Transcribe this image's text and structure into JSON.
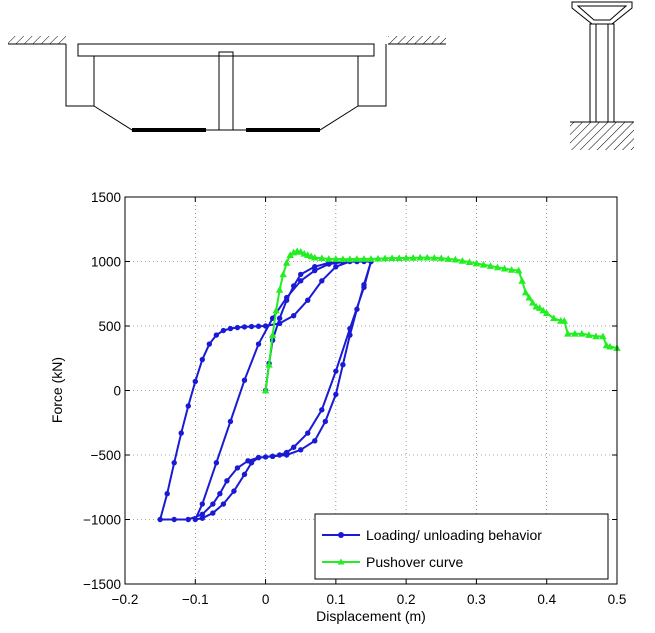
{
  "chart_data": {
    "type": "line",
    "xlabel": "Displacement (m)",
    "ylabel": "Force (kN)",
    "xlim": [
      -0.2,
      0.5
    ],
    "ylim": [
      -1500,
      1500
    ],
    "x_ticks": [
      -0.2,
      -0.1,
      0,
      0.1,
      0.2,
      0.3,
      0.4,
      0.5
    ],
    "x_tick_labels": [
      "−0.2",
      "−0.1",
      "0",
      "0.1",
      "0.2",
      "0.3",
      "0.4",
      "0.5"
    ],
    "y_ticks": [
      -1500,
      -1000,
      -500,
      0,
      500,
      1000,
      1500
    ],
    "y_tick_labels": [
      "−1500",
      "−1000",
      "−500",
      "0",
      "500",
      "1000",
      "1500"
    ],
    "grid": true,
    "legend_position": "bottom-right",
    "series": [
      {
        "name": "Loading/ unloading behavior",
        "color": "#1a1ad6",
        "marker": "circle",
        "x": [
          0,
          0.005,
          0.01,
          0.02,
          0.03,
          0.04,
          0.05,
          0.07,
          0.09,
          0.11,
          0.13,
          0.15,
          0.14,
          0.12,
          0.1,
          0.08,
          0.06,
          0.04,
          0.03,
          0.02,
          0.01,
          0.0,
          -0.01,
          -0.02,
          -0.03,
          -0.045,
          -0.06,
          -0.075,
          -0.09,
          -0.1,
          -0.09,
          -0.07,
          -0.05,
          -0.03,
          -0.01,
          0.01,
          0.03,
          0.05,
          0.07,
          0.09,
          0.11,
          0.13,
          0.15,
          0.14,
          0.13,
          0.12,
          0.11,
          0.1,
          0.085,
          0.07,
          0.05,
          0.03,
          0.01,
          -0.01,
          -0.025,
          -0.04,
          -0.055,
          -0.065,
          -0.075,
          -0.09,
          -0.11,
          -0.13,
          -0.15,
          -0.14,
          -0.13,
          -0.12,
          -0.11,
          -0.1,
          -0.09,
          -0.08,
          -0.07,
          -0.06,
          -0.05,
          -0.04,
          -0.03,
          -0.02,
          -0.01,
          0.0,
          0.02,
          0.04,
          0.06,
          0.08,
          0.1,
          0.12,
          0.14,
          0.15
        ],
        "y": [
          0,
          210,
          390,
          560,
          700,
          810,
          900,
          960,
          990,
          1000,
          1000,
          1000,
          800,
          480,
          150,
          -150,
          -330,
          -440,
          -480,
          -500,
          -510,
          -515,
          -520,
          -560,
          -650,
          -780,
          -880,
          -950,
          -990,
          -1000,
          -880,
          -560,
          -240,
          80,
          360,
          560,
          720,
          850,
          930,
          980,
          995,
          1000,
          1000,
          820,
          630,
          430,
          200,
          -30,
          -240,
          -390,
          -460,
          -500,
          -510,
          -520,
          -545,
          -600,
          -700,
          -800,
          -880,
          -960,
          -1000,
          -1000,
          -1000,
          -800,
          -560,
          -330,
          -120,
          70,
          240,
          360,
          430,
          465,
          480,
          488,
          493,
          496,
          498,
          500,
          520,
          580,
          700,
          850,
          960,
          1000,
          1000,
          1000
        ]
      },
      {
        "name": "Pushover curve",
        "color": "#22ee22",
        "marker": "triangle",
        "x": [
          0,
          0.005,
          0.01,
          0.015,
          0.02,
          0.025,
          0.03,
          0.035,
          0.04,
          0.045,
          0.05,
          0.055,
          0.06,
          0.065,
          0.07,
          0.08,
          0.09,
          0.1,
          0.11,
          0.12,
          0.13,
          0.14,
          0.15,
          0.16,
          0.17,
          0.18,
          0.19,
          0.2,
          0.21,
          0.22,
          0.23,
          0.24,
          0.25,
          0.26,
          0.27,
          0.28,
          0.29,
          0.3,
          0.31,
          0.32,
          0.33,
          0.34,
          0.35,
          0.36,
          0.365,
          0.37,
          0.375,
          0.38,
          0.385,
          0.39,
          0.395,
          0.4,
          0.41,
          0.42,
          0.425,
          0.43,
          0.44,
          0.45,
          0.46,
          0.47,
          0.48,
          0.485,
          0.49,
          0.5
        ],
        "y": [
          0,
          200,
          430,
          620,
          780,
          900,
          990,
          1050,
          1070,
          1080,
          1075,
          1060,
          1050,
          1040,
          1030,
          1025,
          1020,
          1020,
          1018,
          1018,
          1020,
          1020,
          1020,
          1022,
          1024,
          1026,
          1026,
          1028,
          1028,
          1030,
          1030,
          1028,
          1025,
          1020,
          1015,
          1005,
          995,
          985,
          975,
          965,
          955,
          945,
          935,
          930,
          850,
          760,
          720,
          680,
          650,
          640,
          620,
          600,
          560,
          540,
          540,
          440,
          440,
          440,
          430,
          420,
          420,
          350,
          340,
          330
        ]
      }
    ]
  }
}
